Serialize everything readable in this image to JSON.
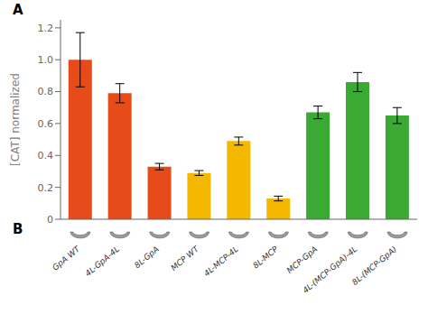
{
  "chart_data": {
    "type": "bar",
    "categories": [
      "GpA WT",
      "4L-GpA-4L",
      "8L-GpA",
      "MCP WT",
      "4L-MCP-4L",
      "8L-MCP",
      "MCP-GpA",
      "4L-(MCP-GpA)-4L",
      "8L-(MCP-GpA)"
    ],
    "values": [
      1.0,
      0.79,
      0.33,
      0.29,
      0.49,
      0.13,
      0.67,
      0.86,
      0.65
    ],
    "errors": [
      0.17,
      0.06,
      0.02,
      0.015,
      0.025,
      0.015,
      0.04,
      0.06,
      0.05
    ],
    "colors": [
      "#E84B1A",
      "#E84B1A",
      "#E84B1A",
      "#F5B800",
      "#F5B800",
      "#F5B800",
      "#3BAA35",
      "#3BAA35",
      "#3BAA35"
    ],
    "ylabel": "[CAT] normalized",
    "ylim": [
      0,
      1.25
    ],
    "yticks": [
      0,
      0.2,
      0.4,
      0.6,
      0.8,
      {
        "value": 1.0,
        "label": "1.0"
      },
      1.2
    ],
    "annotations": [
      "A",
      "B"
    ]
  }
}
